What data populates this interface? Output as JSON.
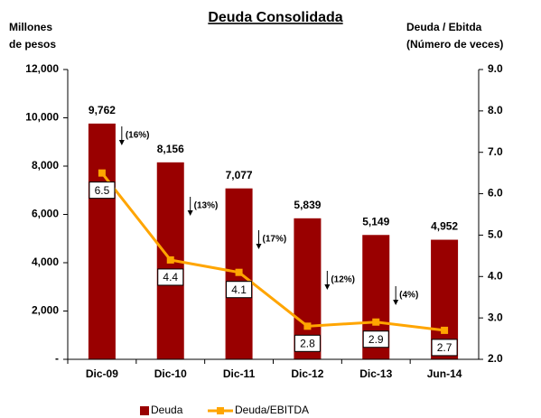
{
  "chart_data": {
    "type": "bar",
    "title": "Deuda Consolidada",
    "y_label": [
      "Millones",
      "de pesos"
    ],
    "y2_label": [
      "Deuda / Ebitda",
      "(Número de veces)"
    ],
    "categories": [
      "Dic-09",
      "Dic-10",
      "Dic-11",
      "Dic-12",
      "Dic-13",
      "Jun-14"
    ],
    "series": [
      {
        "name": "Deuda",
        "type": "bar",
        "color": "#990000",
        "values": [
          9762,
          8156,
          7077,
          5839,
          5149,
          4952
        ],
        "value_labels": [
          "9,762",
          "8,156",
          "7,077",
          "5,839",
          "5,149",
          "4,952"
        ]
      },
      {
        "name": "Deuda/EBITDA",
        "type": "line",
        "axis": "y2",
        "color": "#FFA500",
        "values": [
          6.5,
          4.4,
          4.1,
          2.8,
          2.9,
          2.7
        ]
      }
    ],
    "annotations": [
      "(16%)",
      "(13%)",
      "(17%)",
      "(12%)",
      "(4%)"
    ],
    "ylim": [
      0,
      12000
    ],
    "yticks": [
      {
        "value": 0,
        "label": "-"
      },
      {
        "value": 2000,
        "label": "2,000"
      },
      {
        "value": 4000,
        "label": "4,000"
      },
      {
        "value": 6000,
        "label": "6,000"
      },
      {
        "value": 8000,
        "label": "8,000"
      },
      {
        "value": 10000,
        "label": "10,000"
      },
      {
        "value": 12000,
        "label": "12,000"
      }
    ],
    "y2lim": [
      2,
      9
    ],
    "y2ticks": [
      {
        "value": 2,
        "label": "2.0"
      },
      {
        "value": 3,
        "label": "3.0"
      },
      {
        "value": 4,
        "label": "4.0"
      },
      {
        "value": 5,
        "label": "5.0"
      },
      {
        "value": 6,
        "label": "6.0"
      },
      {
        "value": 7,
        "label": "7.0"
      },
      {
        "value": 8,
        "label": "8.0"
      },
      {
        "value": 9,
        "label": "9.0"
      }
    ],
    "grid": false,
    "legend": "bottom"
  }
}
